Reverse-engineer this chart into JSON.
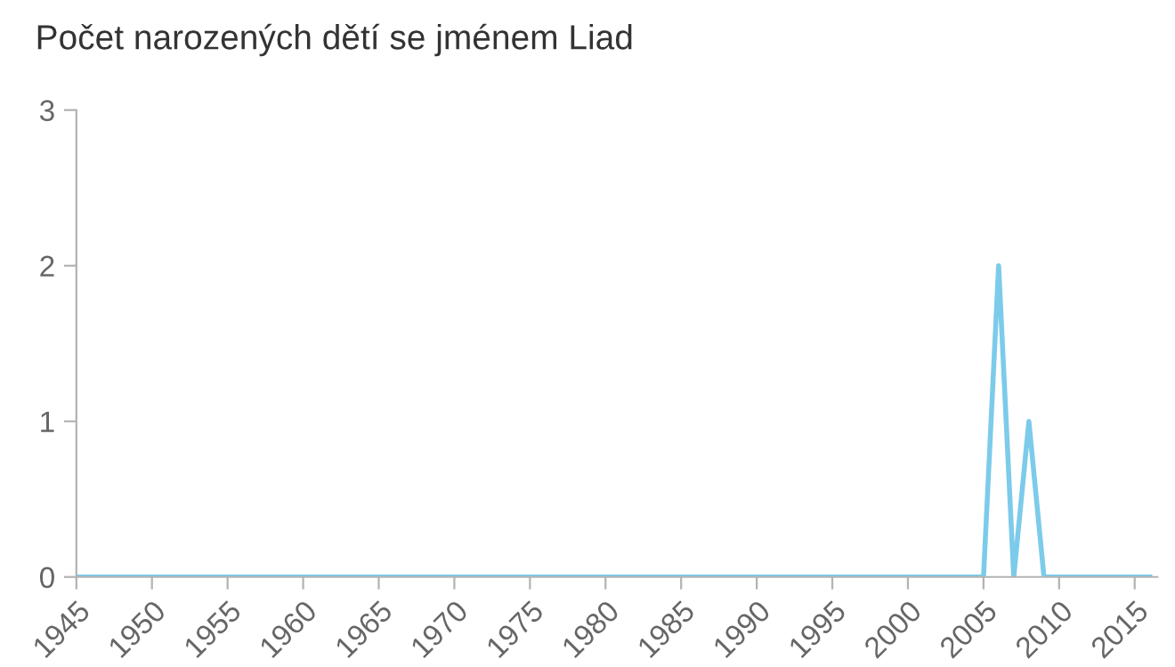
{
  "chart_data": {
    "type": "line",
    "title": "Počet narozených dětí se jménem Liad",
    "x": [
      1945,
      2005,
      2006,
      2007,
      2008,
      2009,
      2016
    ],
    "series": [
      {
        "color": "#7ccbea",
        "values": [
          0,
          0,
          2,
          0,
          1,
          0,
          0
        ]
      }
    ],
    "xlim": [
      1945,
      2016.5
    ],
    "xticks": [
      1945,
      1950,
      1955,
      1960,
      1965,
      1970,
      1975,
      1980,
      1985,
      1990,
      1995,
      2000,
      2005,
      2010,
      2015
    ],
    "ylim": [
      0,
      3
    ],
    "yticks": [
      0,
      1,
      2,
      3
    ],
    "grid": false,
    "marker": "none",
    "line_style": "solid"
  }
}
